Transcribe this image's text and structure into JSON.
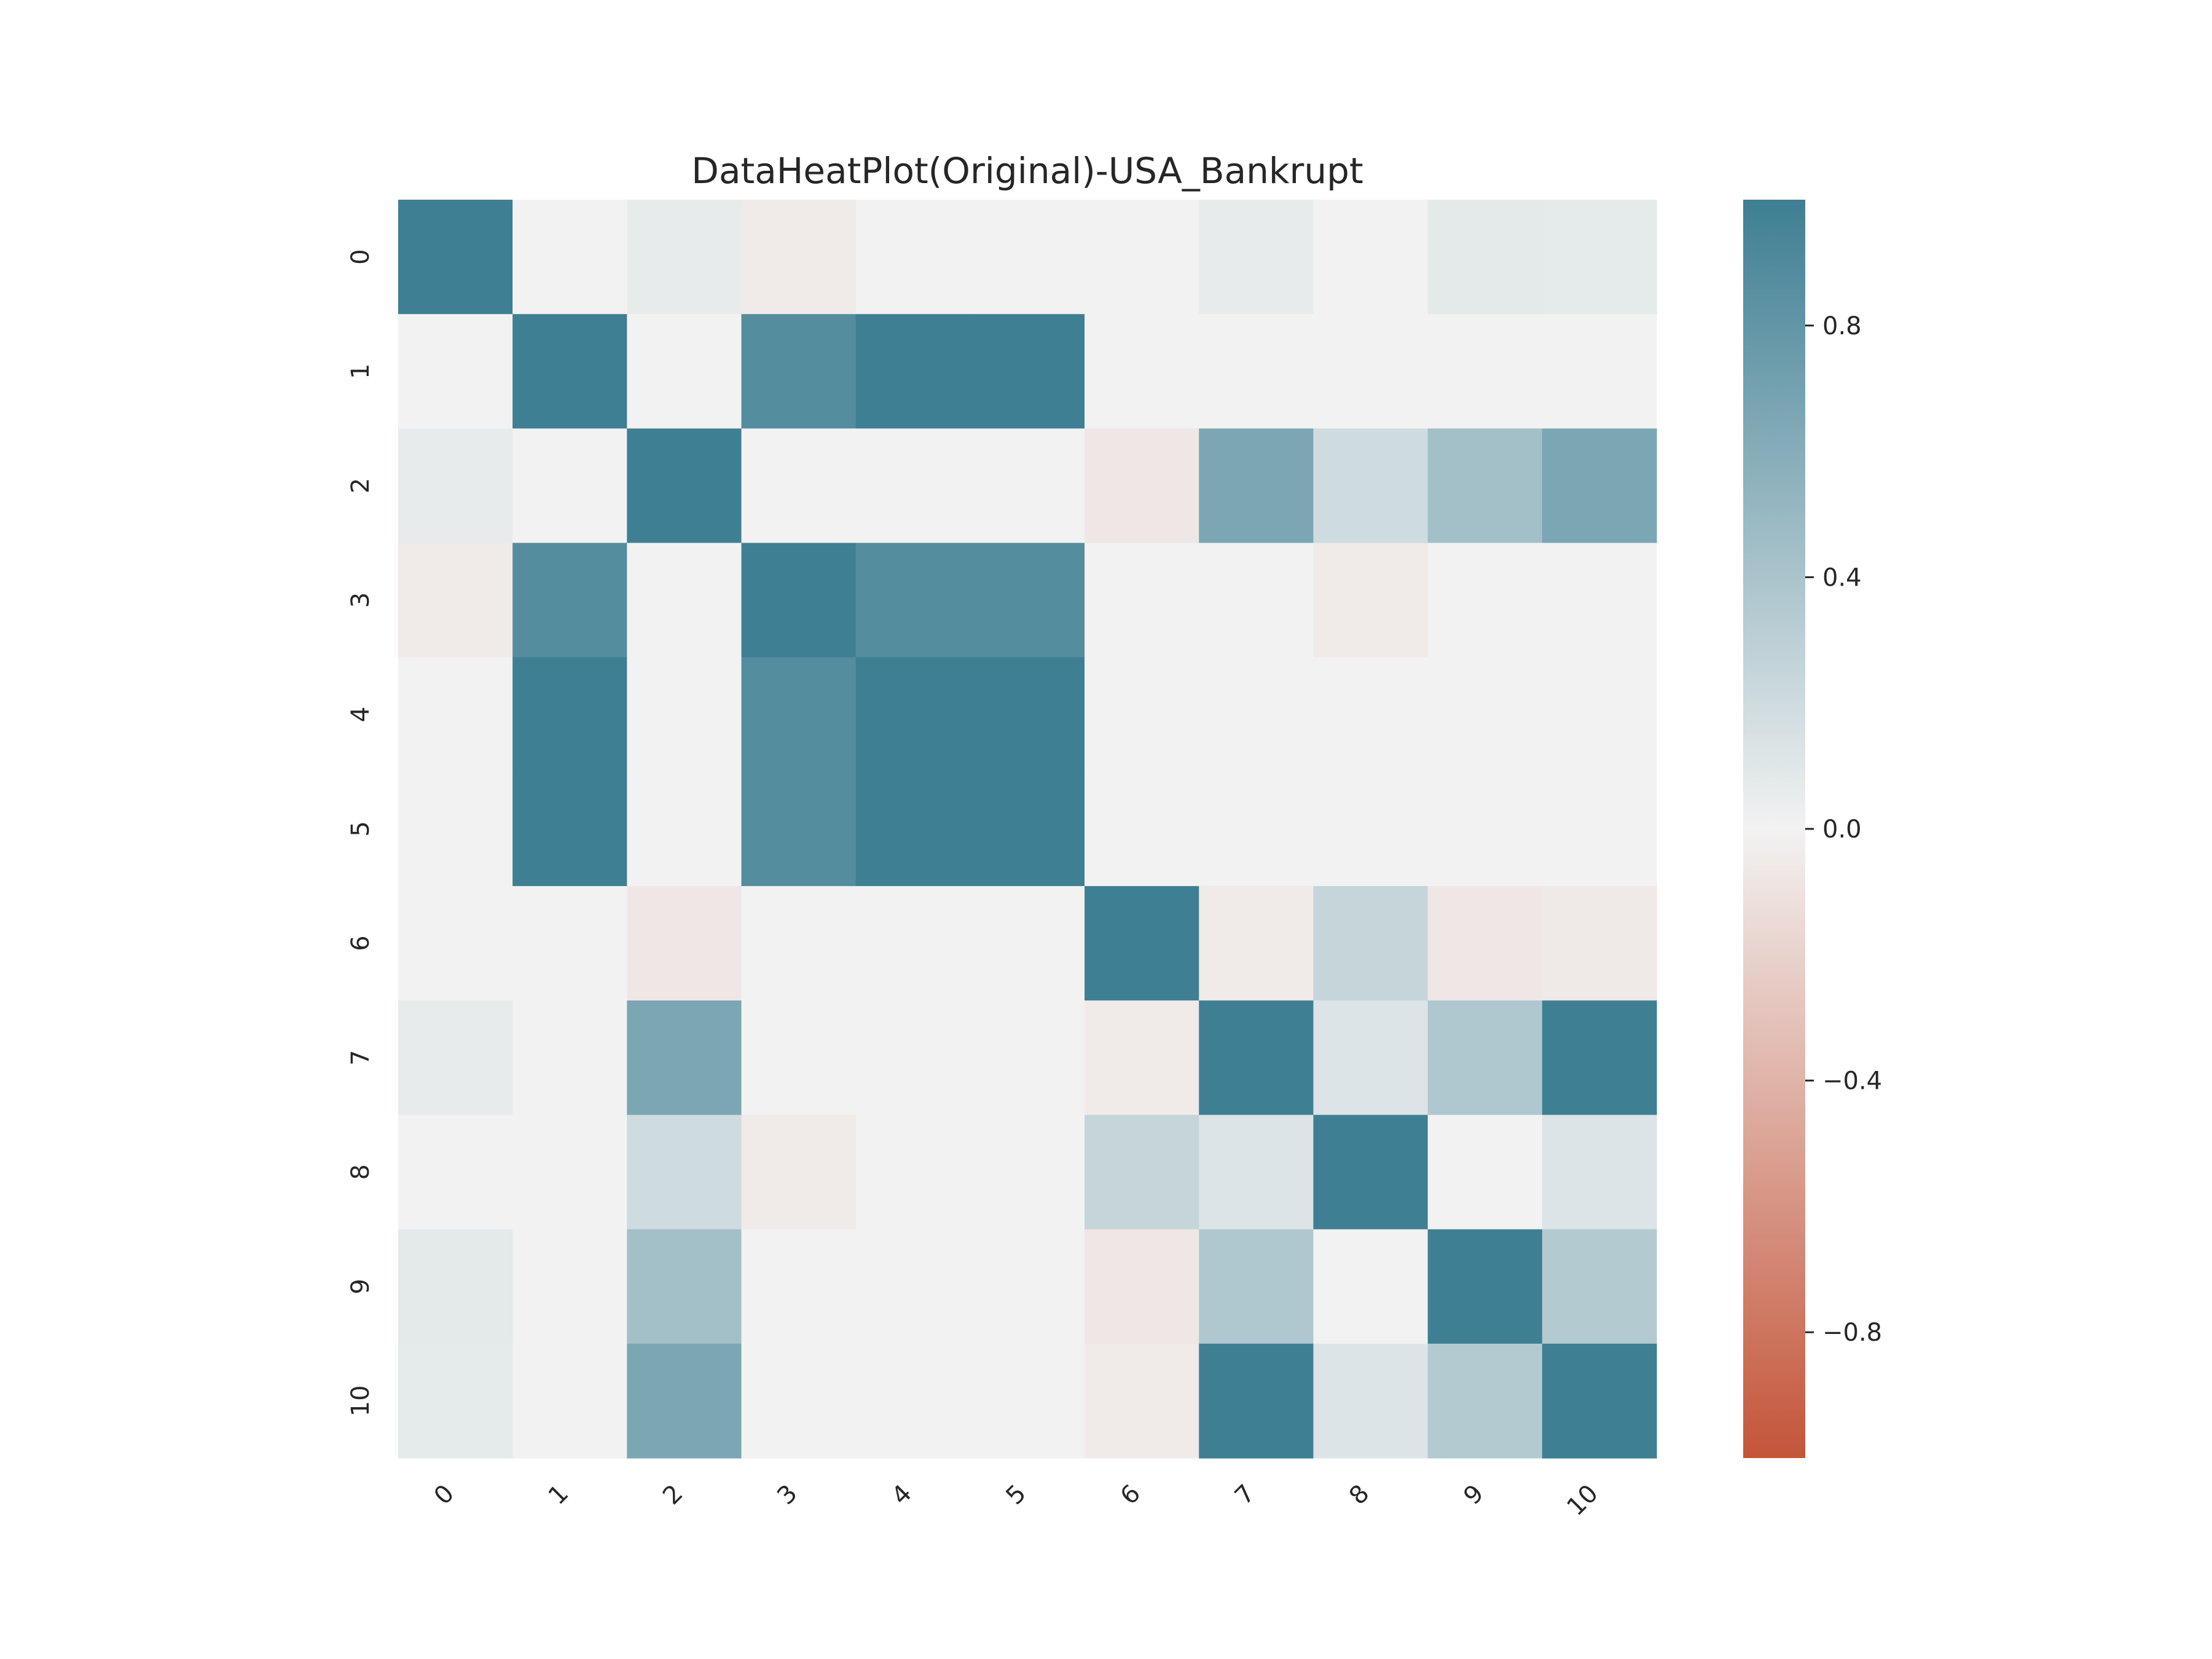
{
  "chart_data": {
    "type": "heatmap",
    "title": "DataHeatPlot(Original)-USA_Bankrupt",
    "xlabel": "",
    "ylabel": "",
    "x_categories": [
      "0",
      "1",
      "2",
      "3",
      "4",
      "5",
      "6",
      "7",
      "8",
      "9",
      "10"
    ],
    "y_categories": [
      "0",
      "1",
      "2",
      "3",
      "4",
      "5",
      "6",
      "7",
      "8",
      "9",
      "10"
    ],
    "values": [
      [
        1.0,
        0.0,
        0.06,
        -0.05,
        0.0,
        0.0,
        0.0,
        0.06,
        0.0,
        0.08,
        0.07
      ],
      [
        0.0,
        1.0,
        0.0,
        0.88,
        1.0,
        1.0,
        0.0,
        0.0,
        0.0,
        0.0,
        0.0
      ],
      [
        0.06,
        0.0,
        1.0,
        0.0,
        0.0,
        0.0,
        -0.07,
        0.66,
        0.2,
        0.44,
        0.66
      ],
      [
        -0.05,
        0.88,
        0.0,
        1.0,
        0.88,
        0.88,
        0.0,
        0.0,
        -0.05,
        0.0,
        0.0
      ],
      [
        0.0,
        1.0,
        0.0,
        0.88,
        1.0,
        1.0,
        0.0,
        0.0,
        0.0,
        0.0,
        0.0
      ],
      [
        0.0,
        1.0,
        0.0,
        0.88,
        1.0,
        1.0,
        0.0,
        0.0,
        0.0,
        0.0,
        0.0
      ],
      [
        0.0,
        0.0,
        -0.07,
        0.0,
        0.0,
        0.0,
        1.0,
        -0.05,
        0.25,
        -0.07,
        -0.06
      ],
      [
        0.06,
        0.0,
        0.66,
        0.0,
        0.0,
        0.0,
        -0.05,
        1.0,
        0.12,
        0.37,
        1.0
      ],
      [
        0.0,
        0.0,
        0.2,
        -0.05,
        0.0,
        0.0,
        0.25,
        0.12,
        1.0,
        0.0,
        0.12
      ],
      [
        0.08,
        0.0,
        0.44,
        0.0,
        0.0,
        0.0,
        -0.07,
        0.37,
        0.0,
        1.0,
        0.35
      ],
      [
        0.07,
        0.0,
        0.66,
        0.0,
        0.0,
        0.0,
        -0.05,
        1.0,
        0.12,
        0.35,
        1.0
      ]
    ],
    "colorbar": {
      "range": [
        -1.0,
        1.0
      ],
      "ticks": [
        "0.8",
        "0.4",
        "0.0",
        "−0.4",
        "−0.8"
      ],
      "tick_values": [
        0.8,
        0.4,
        0.0,
        -0.4,
        -0.8
      ]
    },
    "colormap": {
      "negative": "#c45539",
      "zero": "#f2f2f2",
      "positive": "#3e7f93"
    },
    "grid": false,
    "legend": "colorbar-right"
  }
}
